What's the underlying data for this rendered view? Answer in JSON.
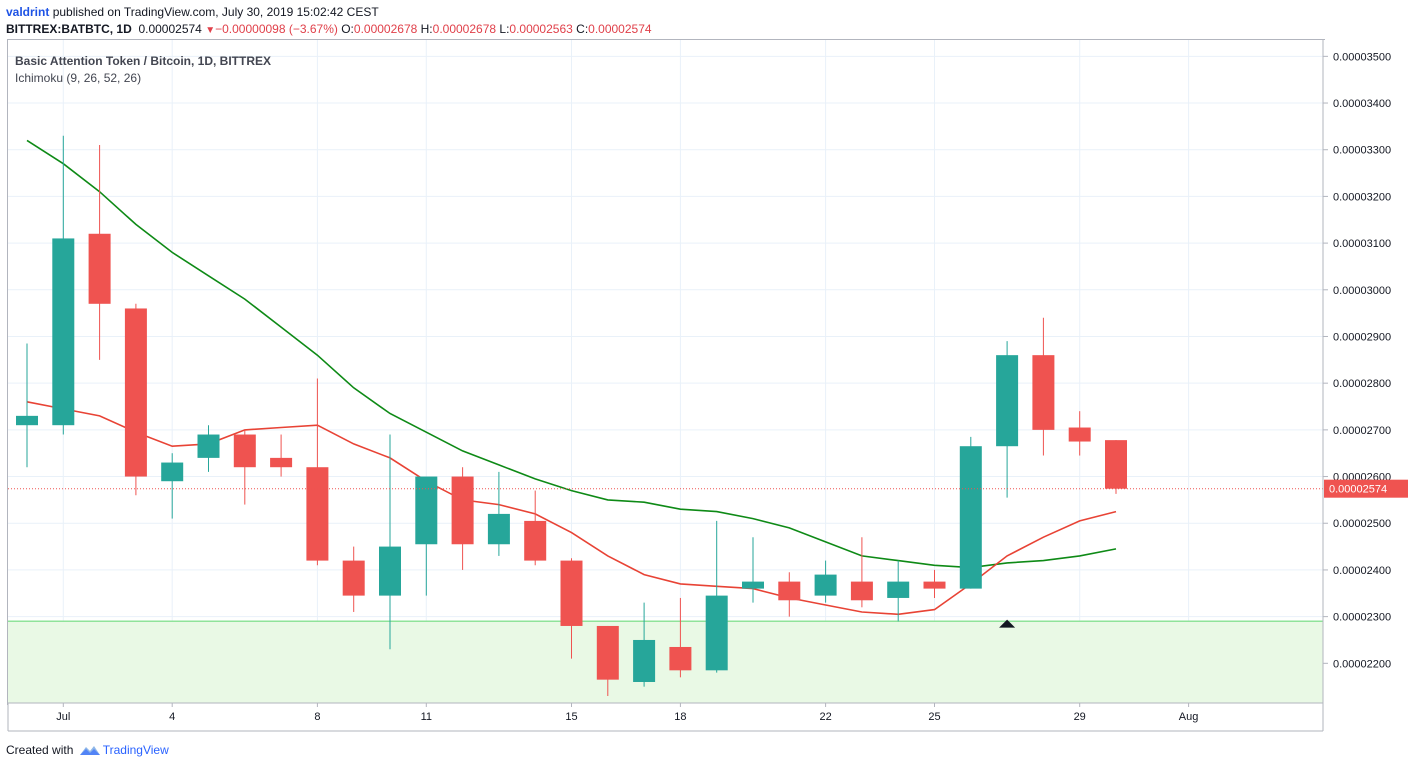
{
  "header": {
    "author": "valdrint",
    "published_text": "published on TradingView.com, July 30, 2019 15:02:42 CEST"
  },
  "symbol_bar": {
    "symbol": "BITTREX:BATBTC, 1D",
    "last": "0.00002574",
    "change": "−0.00000098 (−3.67%)",
    "o_label": "O:",
    "o_value": "0.00002678",
    "h_label": "H:",
    "h_value": "0.00002678",
    "l_label": "L:",
    "l_value": "0.00002563",
    "c_label": "C:",
    "c_value": "0.00002574"
  },
  "legend": {
    "title": "Basic Attention Token / Bitcoin, 1D, BITTREX",
    "indicator": "Ichimoku (9, 26, 52, 26)"
  },
  "footer": {
    "created_with": "Created with",
    "brand": "TradingView"
  },
  "colors": {
    "up": "#26a69a",
    "down": "#ef5350",
    "tenkan": "#e84335",
    "kijun": "#0e8a16",
    "support_zone": "#e9f9e5",
    "support_line": "#8fe39a",
    "last_price_label": "#ef5350",
    "grid": "#e9f1f9"
  },
  "chart_data": {
    "type": "candlestick",
    "title": "Basic Attention Token / Bitcoin, 1D, BITTREX",
    "ylim": [
      2.115e-05,
      3.535e-05
    ],
    "y_ticks": [
      "0.00002200",
      "0.00002300",
      "0.00002400",
      "0.00002500",
      "0.00002600",
      "0.00002700",
      "0.00002800",
      "0.00002900",
      "0.00003000",
      "0.00003100",
      "0.00003200",
      "0.00003300",
      "0.00003400",
      "0.00003500"
    ],
    "x_ticks": [
      {
        "label": "Jul",
        "day": 1
      },
      {
        "label": "4",
        "day": 4
      },
      {
        "label": "8",
        "day": 8
      },
      {
        "label": "11",
        "day": 11
      },
      {
        "label": "15",
        "day": 15
      },
      {
        "label": "18",
        "day": 18
      },
      {
        "label": "22",
        "day": 22
      },
      {
        "label": "25",
        "day": 25
      },
      {
        "label": "29",
        "day": 29
      },
      {
        "label": "Aug",
        "day": 32
      }
    ],
    "candles": [
      {
        "day": 0,
        "o": 2.71e-05,
        "h": 2.885e-05,
        "l": 2.62e-05,
        "c": 2.73e-05
      },
      {
        "day": 1,
        "o": 2.71e-05,
        "h": 3.33e-05,
        "l": 2.69e-05,
        "c": 3.11e-05
      },
      {
        "day": 2,
        "o": 3.12e-05,
        "h": 3.31e-05,
        "l": 2.85e-05,
        "c": 2.97e-05
      },
      {
        "day": 3,
        "o": 2.96e-05,
        "h": 2.97e-05,
        "l": 2.56e-05,
        "c": 2.6e-05
      },
      {
        "day": 4,
        "o": 2.59e-05,
        "h": 2.65e-05,
        "l": 2.51e-05,
        "c": 2.63e-05
      },
      {
        "day": 5,
        "o": 2.64e-05,
        "h": 2.71e-05,
        "l": 2.61e-05,
        "c": 2.69e-05
      },
      {
        "day": 6,
        "o": 2.69e-05,
        "h": 2.7e-05,
        "l": 2.54e-05,
        "c": 2.62e-05
      },
      {
        "day": 7,
        "o": 2.64e-05,
        "h": 2.69e-05,
        "l": 2.6e-05,
        "c": 2.62e-05
      },
      {
        "day": 8,
        "o": 2.62e-05,
        "h": 2.81e-05,
        "l": 2.41e-05,
        "c": 2.42e-05
      },
      {
        "day": 9,
        "o": 2.42e-05,
        "h": 2.45e-05,
        "l": 2.31e-05,
        "c": 2.345e-05
      },
      {
        "day": 10,
        "o": 2.345e-05,
        "h": 2.69e-05,
        "l": 2.23e-05,
        "c": 2.45e-05
      },
      {
        "day": 11,
        "o": 2.455e-05,
        "h": 2.6e-05,
        "l": 2.345e-05,
        "c": 2.6e-05
      },
      {
        "day": 12,
        "o": 2.6e-05,
        "h": 2.62e-05,
        "l": 2.4e-05,
        "c": 2.455e-05
      },
      {
        "day": 13,
        "o": 2.455e-05,
        "h": 2.61e-05,
        "l": 2.43e-05,
        "c": 2.52e-05
      },
      {
        "day": 14,
        "o": 2.505e-05,
        "h": 2.57e-05,
        "l": 2.41e-05,
        "c": 2.42e-05
      },
      {
        "day": 15,
        "o": 2.42e-05,
        "h": 2.425e-05,
        "l": 2.21e-05,
        "c": 2.28e-05
      },
      {
        "day": 16,
        "o": 2.28e-05,
        "h": 2.28e-05,
        "l": 2.13e-05,
        "c": 2.165e-05
      },
      {
        "day": 17,
        "o": 2.16e-05,
        "h": 2.33e-05,
        "l": 2.15e-05,
        "c": 2.25e-05
      },
      {
        "day": 18,
        "o": 2.235e-05,
        "h": 2.34e-05,
        "l": 2.17e-05,
        "c": 2.185e-05
      },
      {
        "day": 19,
        "o": 2.185e-05,
        "h": 2.505e-05,
        "l": 2.18e-05,
        "c": 2.345e-05
      },
      {
        "day": 20,
        "o": 2.36e-05,
        "h": 2.47e-05,
        "l": 2.33e-05,
        "c": 2.375e-05
      },
      {
        "day": 21,
        "o": 2.375e-05,
        "h": 2.395e-05,
        "l": 2.3e-05,
        "c": 2.335e-05
      },
      {
        "day": 22,
        "o": 2.345e-05,
        "h": 2.42e-05,
        "l": 2.33e-05,
        "c": 2.39e-05
      },
      {
        "day": 23,
        "o": 2.375e-05,
        "h": 2.47e-05,
        "l": 2.32e-05,
        "c": 2.335e-05
      },
      {
        "day": 24,
        "o": 2.34e-05,
        "h": 2.42e-05,
        "l": 2.29e-05,
        "c": 2.375e-05
      },
      {
        "day": 25,
        "o": 2.375e-05,
        "h": 2.4e-05,
        "l": 2.34e-05,
        "c": 2.36e-05
      },
      {
        "day": 26,
        "o": 2.36e-05,
        "h": 2.685e-05,
        "l": 2.36e-05,
        "c": 2.665e-05
      },
      {
        "day": 27,
        "o": 2.665e-05,
        "h": 2.89e-05,
        "l": 2.555e-05,
        "c": 2.86e-05
      },
      {
        "day": 28,
        "o": 2.86e-05,
        "h": 2.94e-05,
        "l": 2.645e-05,
        "c": 2.7e-05
      },
      {
        "day": 29,
        "o": 2.705e-05,
        "h": 2.74e-05,
        "l": 2.645e-05,
        "c": 2.675e-05
      },
      {
        "day": 30,
        "o": 2.678e-05,
        "h": 2.678e-05,
        "l": 2.563e-05,
        "c": 2.574e-05
      }
    ],
    "series": [
      {
        "color": "#0e8a16",
        "points": [
          [
            0,
            3.32e-05
          ],
          [
            1,
            3.27e-05
          ],
          [
            2,
            3.21e-05
          ],
          [
            3,
            3.14e-05
          ],
          [
            4,
            3.08e-05
          ],
          [
            5,
            3.03e-05
          ],
          [
            6,
            2.98e-05
          ],
          [
            7,
            2.92e-05
          ],
          [
            8,
            2.86e-05
          ],
          [
            9,
            2.79e-05
          ],
          [
            10,
            2.735e-05
          ],
          [
            11,
            2.695e-05
          ],
          [
            12,
            2.655e-05
          ],
          [
            13,
            2.625e-05
          ],
          [
            14,
            2.595e-05
          ],
          [
            15,
            2.57e-05
          ],
          [
            16,
            2.55e-05
          ],
          [
            17,
            2.545e-05
          ],
          [
            18,
            2.53e-05
          ],
          [
            19,
            2.525e-05
          ],
          [
            20,
            2.51e-05
          ],
          [
            21,
            2.49e-05
          ],
          [
            22,
            2.46e-05
          ],
          [
            23,
            2.43e-05
          ],
          [
            24,
            2.42e-05
          ],
          [
            25,
            2.41e-05
          ],
          [
            26,
            2.405e-05
          ],
          [
            27,
            2.415e-05
          ],
          [
            28,
            2.42e-05
          ],
          [
            29,
            2.43e-05
          ],
          [
            30,
            2.445e-05
          ]
        ]
      },
      {
        "color": "#e84335",
        "points": [
          [
            0,
            2.76e-05
          ],
          [
            1,
            2.745e-05
          ],
          [
            2,
            2.73e-05
          ],
          [
            3,
            2.695e-05
          ],
          [
            4,
            2.665e-05
          ],
          [
            5,
            2.67e-05
          ],
          [
            6,
            2.7e-05
          ],
          [
            7,
            2.705e-05
          ],
          [
            8,
            2.71e-05
          ],
          [
            9,
            2.67e-05
          ],
          [
            10,
            2.64e-05
          ],
          [
            11,
            2.59e-05
          ],
          [
            12,
            2.55e-05
          ],
          [
            13,
            2.54e-05
          ],
          [
            14,
            2.52e-05
          ],
          [
            15,
            2.48e-05
          ],
          [
            16,
            2.43e-05
          ],
          [
            17,
            2.39e-05
          ],
          [
            18,
            2.37e-05
          ],
          [
            19,
            2.365e-05
          ],
          [
            20,
            2.36e-05
          ],
          [
            21,
            2.34e-05
          ],
          [
            22,
            2.325e-05
          ],
          [
            23,
            2.31e-05
          ],
          [
            24,
            2.305e-05
          ],
          [
            25,
            2.315e-05
          ],
          [
            26,
            2.37e-05
          ],
          [
            27,
            2.43e-05
          ],
          [
            28,
            2.47e-05
          ],
          [
            29,
            2.505e-05
          ],
          [
            30,
            2.525e-05
          ]
        ]
      }
    ],
    "support_zone": {
      "from": 2.13e-05,
      "to": 2.29e-05
    },
    "last_price": "0.00002574",
    "last_price_value": 2.574e-05,
    "marker": {
      "day": 27,
      "price": 2.285e-05,
      "shape": "triangle-up"
    }
  }
}
